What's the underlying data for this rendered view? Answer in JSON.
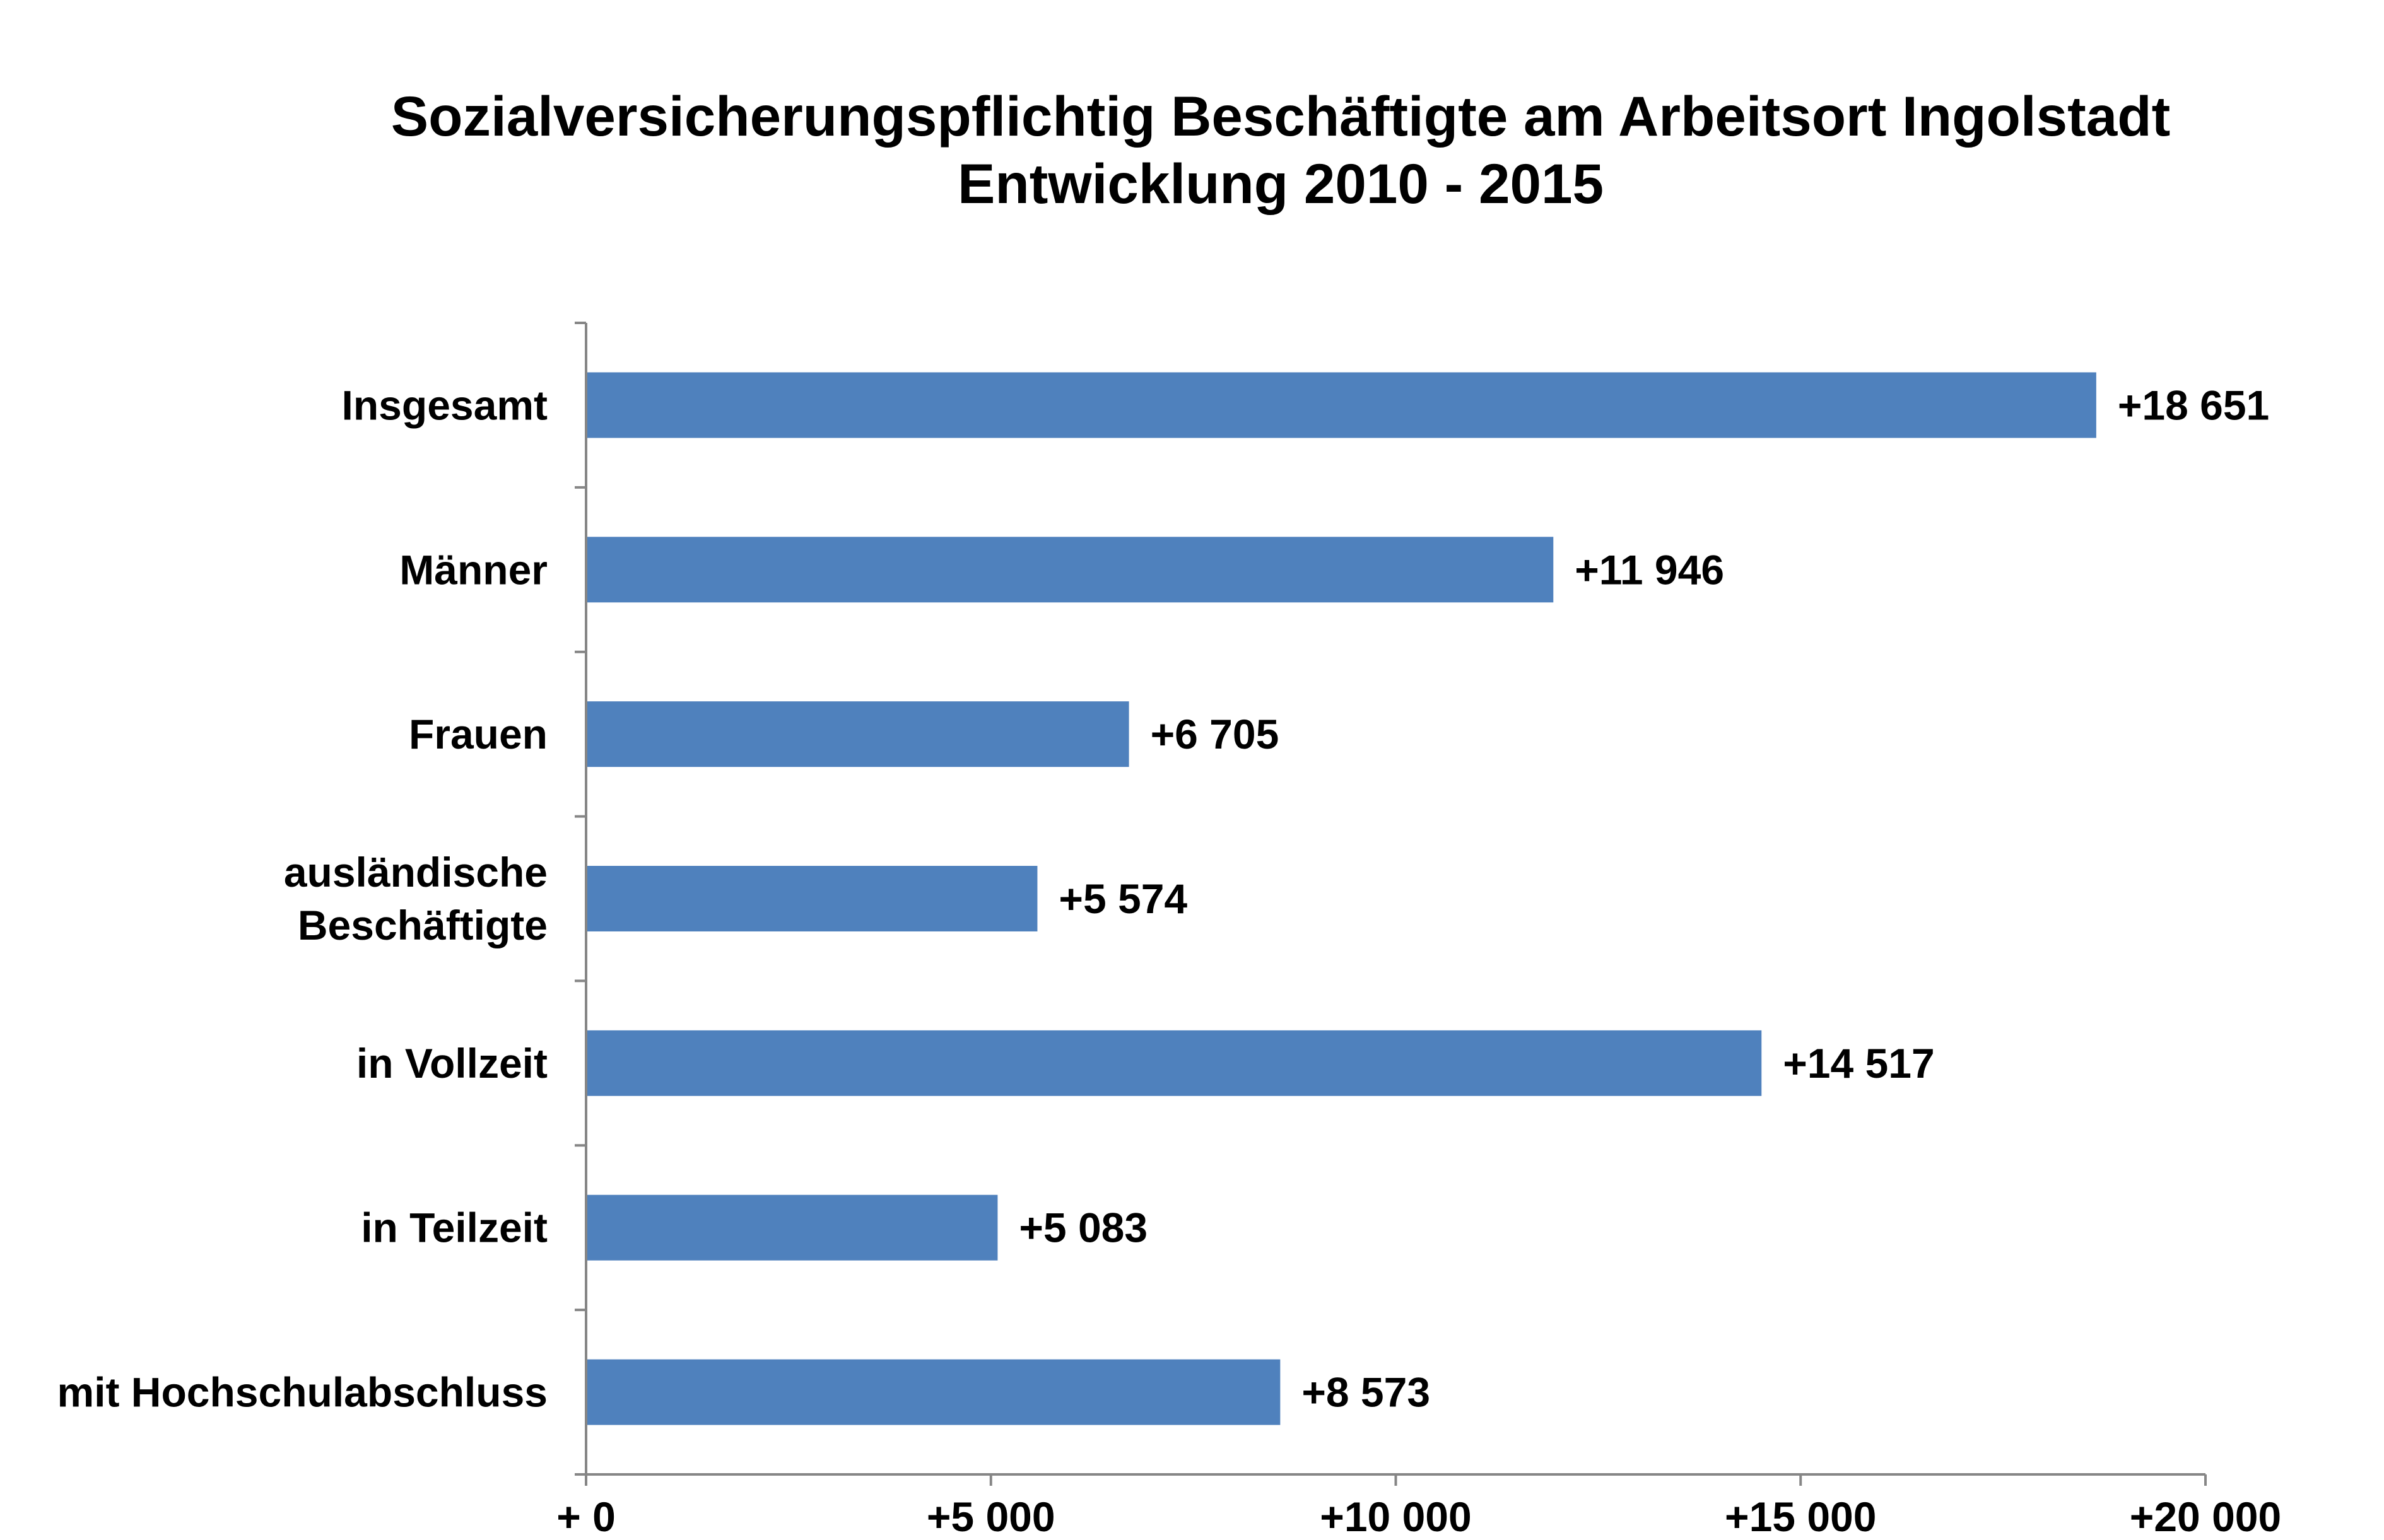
{
  "chart_data": {
    "type": "bar",
    "orientation": "horizontal",
    "title": [
      "Sozialversicherungspflichtig Beschäftigte am Arbeitsort Ingolstadt",
      "Entwicklung  2010 -  2015"
    ],
    "categories": [
      [
        "Insgesamt"
      ],
      [
        "Männer"
      ],
      [
        "Frauen"
      ],
      [
        "ausländische",
        "Beschäftigte"
      ],
      [
        "in Vollzeit"
      ],
      [
        "in Teilzeit"
      ],
      [
        "mit Hochschulabschluss"
      ]
    ],
    "values": [
      18651,
      11946,
      6705,
      5574,
      14517,
      5083,
      8573
    ],
    "data_labels": [
      "+18 651",
      "+11 946",
      "+6 705",
      "+5 574",
      "+14 517",
      "+5 083",
      "+8 573"
    ],
    "xlim": [
      0,
      20000
    ],
    "x_ticks": [
      0,
      5000,
      10000,
      15000,
      20000
    ],
    "x_tick_labels": [
      "+ 0",
      "+5 000",
      "+10 000",
      "+15 000",
      "+20 000"
    ],
    "bar_color": "#4F81BD",
    "axis_color": "#868686",
    "grid": false,
    "legend": "none"
  }
}
